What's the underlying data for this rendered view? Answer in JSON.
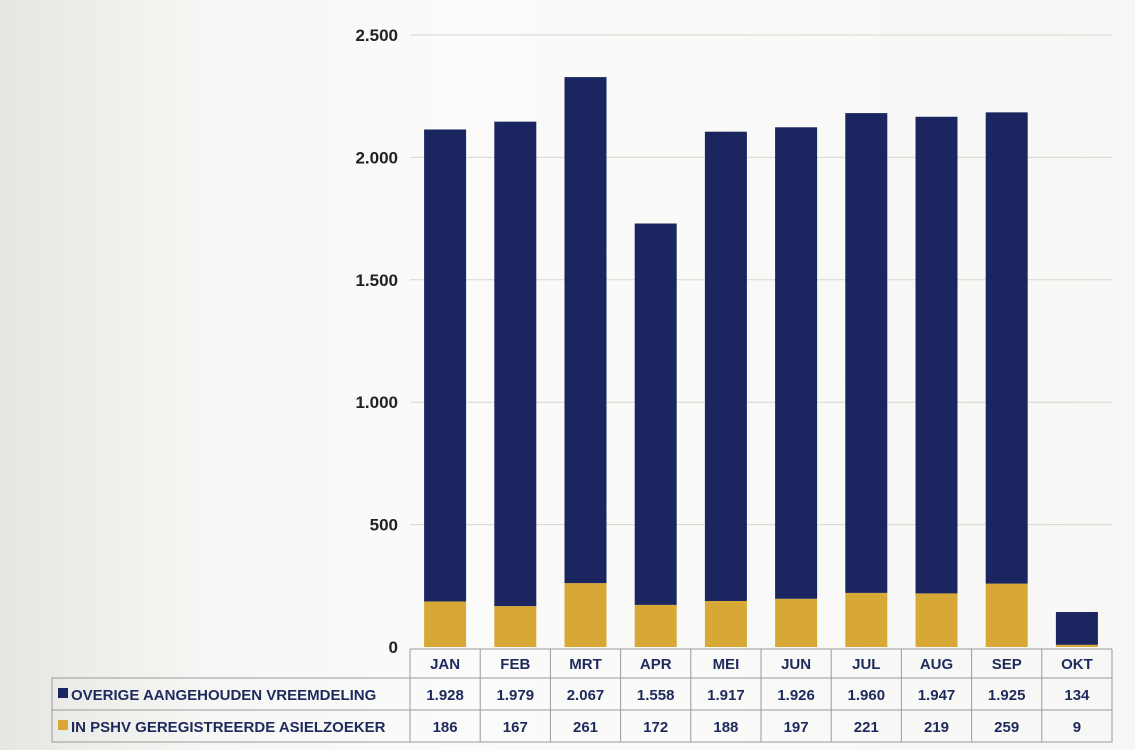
{
  "chart_data": {
    "type": "bar",
    "stacked": true,
    "categories": [
      "JAN",
      "FEB",
      "MRT",
      "APR",
      "MEI",
      "JUN",
      "JUL",
      "AUG",
      "SEP",
      "OKT"
    ],
    "series": [
      {
        "name": "IN PSHV GEREGISTREERDE ASIELZOEKER",
        "color": "#d8a836",
        "values": [
          186,
          167,
          261,
          172,
          188,
          197,
          221,
          219,
          259,
          9
        ],
        "labels": [
          "186",
          "167",
          "261",
          "172",
          "188",
          "197",
          "221",
          "219",
          "259",
          "9"
        ]
      },
      {
        "name": "OVERIGE AANGEHOUDEN VREEMDELING",
        "color": "#1b2660",
        "values": [
          1928,
          1979,
          2067,
          1558,
          1917,
          1926,
          1960,
          1947,
          1925,
          134
        ],
        "labels": [
          "1.928",
          "1.979",
          "2.067",
          "1.558",
          "1.917",
          "1.926",
          "1.960",
          "1.947",
          "1.925",
          "134"
        ]
      }
    ],
    "ylim": [
      0,
      2500
    ],
    "yticks": [
      0,
      500,
      1000,
      1500,
      2000,
      2500
    ],
    "ytick_labels": [
      "0",
      "500",
      "1.000",
      "1.500",
      "2.000",
      "2.500"
    ],
    "grid": true,
    "legend": "data-table-bottom"
  }
}
